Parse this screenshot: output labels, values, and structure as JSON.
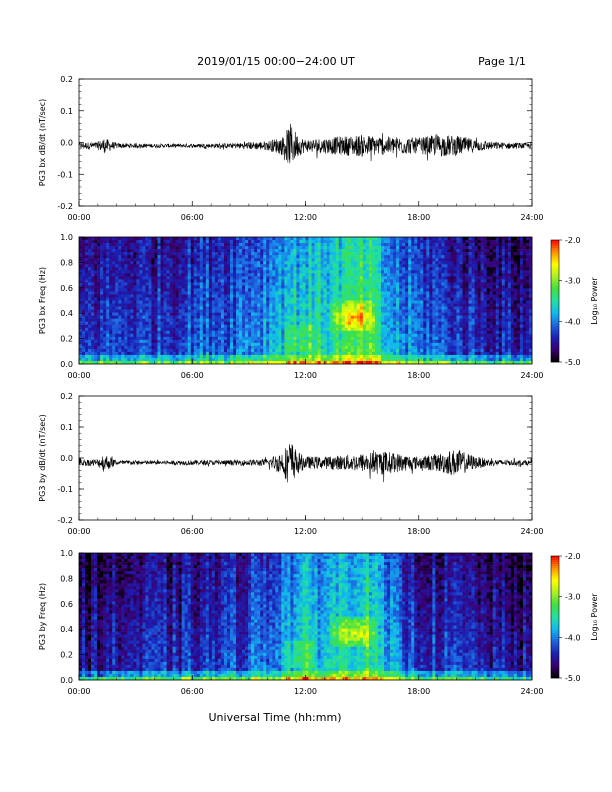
{
  "header": {
    "title": "2019/01/15  00:00−24:00 UT",
    "page": "Page 1/1"
  },
  "footer": {
    "xlabel": "Universal Time (hh:mm)"
  },
  "colors": {
    "trace": "#000000",
    "axis": "#000000",
    "background": "#ffffff",
    "colormap": [
      "#000000",
      "#3a0070",
      "#1a1fb4",
      "#1e64e0",
      "#10b8f0",
      "#22e0a0",
      "#40e040",
      "#a8f020",
      "#ffff00",
      "#ff9000",
      "#ff0000"
    ]
  },
  "chart_data": [
    {
      "type": "line",
      "ylabel": "PG3 bx dB/dt (nT/sec)",
      "ylim": [
        -0.2,
        0.2
      ],
      "yticks": [
        "0.2",
        "0.1",
        "0.0",
        "-0.1",
        "-0.2"
      ],
      "xlim_hours": [
        0,
        24
      ],
      "xticks": [
        "00:00",
        "06:00",
        "12:00",
        "18:00",
        "24:00"
      ],
      "baseline": -0.01,
      "envelope": {
        "x_hours": [
          0,
          1,
          1.3,
          2,
          4,
          6,
          8,
          10,
          10.8,
          11.2,
          11.6,
          12,
          13,
          14,
          15,
          16,
          17,
          18,
          19,
          20,
          21,
          22,
          24
        ],
        "amplitude": [
          0.01,
          0.012,
          0.025,
          0.008,
          0.006,
          0.006,
          0.008,
          0.015,
          0.03,
          0.07,
          0.035,
          0.02,
          0.025,
          0.03,
          0.035,
          0.03,
          0.028,
          0.025,
          0.035,
          0.032,
          0.02,
          0.012,
          0.008
        ]
      }
    },
    {
      "type": "heatmap",
      "ylabel": "PG3 bx Freq (Hz)",
      "ylim": [
        0.0,
        1.0
      ],
      "yticks": [
        "1.0",
        "0.8",
        "0.6",
        "0.4",
        "0.2",
        "0.0"
      ],
      "xlim_hours": [
        0,
        24
      ],
      "xticks": [
        "00:00",
        "06:00",
        "12:00",
        "18:00",
        "24:00"
      ],
      "colorbar": {
        "label": "Log₁₀ Power",
        "range": [
          -5.0,
          -2.0
        ],
        "ticks": [
          "-2.0",
          "-3.0",
          "-4.0",
          "-5.0"
        ]
      },
      "activity_profile": {
        "x_hours": [
          0,
          2,
          4,
          6,
          8,
          10,
          11,
          12,
          13,
          14,
          15,
          15.5,
          16,
          17,
          18,
          19,
          20,
          22,
          24
        ],
        "level": [
          -4.3,
          -4.2,
          -4.2,
          -4.1,
          -4.0,
          -3.75,
          -3.55,
          -3.45,
          -3.45,
          -3.3,
          -3.2,
          -3.2,
          -3.6,
          -3.9,
          -4.0,
          -4.1,
          -4.2,
          -4.35,
          -4.4
        ]
      },
      "feature": "enhanced power near 0.3-0.4 Hz around 14:00-15:30 UT"
    },
    {
      "type": "line",
      "ylabel": "PG3 by dB/dt (nT/sec)",
      "ylim": [
        -0.2,
        0.2
      ],
      "yticks": [
        "0.2",
        "0.1",
        "0.0",
        "-0.1",
        "-0.2"
      ],
      "xlim_hours": [
        0,
        24
      ],
      "xticks": [
        "00:00",
        "06:00",
        "12:00",
        "18:00",
        "24:00"
      ],
      "baseline": -0.015,
      "envelope": {
        "x_hours": [
          0,
          1,
          1.3,
          2,
          4,
          6,
          8,
          10,
          10.8,
          11.2,
          11.6,
          12,
          13,
          14,
          15,
          16,
          17,
          18,
          19,
          20,
          21,
          22,
          24
        ],
        "amplitude": [
          0.01,
          0.012,
          0.03,
          0.008,
          0.006,
          0.008,
          0.008,
          0.012,
          0.04,
          0.075,
          0.035,
          0.02,
          0.02,
          0.025,
          0.03,
          0.04,
          0.03,
          0.02,
          0.03,
          0.045,
          0.02,
          0.01,
          0.008
        ]
      }
    },
    {
      "type": "heatmap",
      "ylabel": "PG3 by Freq (Hz)",
      "ylim": [
        0.0,
        1.0
      ],
      "yticks": [
        "1.0",
        "0.8",
        "0.6",
        "0.4",
        "0.2",
        "0.0"
      ],
      "xlim_hours": [
        0,
        24
      ],
      "xticks": [
        "00:00",
        "06:00",
        "12:00",
        "18:00",
        "24:00"
      ],
      "colorbar": {
        "label": "Log₁₀ Power",
        "range": [
          -5.0,
          -2.0
        ],
        "ticks": [
          "-2.0",
          "-3.0",
          "-4.0",
          "-5.0"
        ]
      },
      "activity_profile": {
        "x_hours": [
          0,
          2,
          4,
          6,
          8,
          10,
          11,
          12,
          13,
          14,
          15,
          15.5,
          16,
          17,
          18,
          19,
          20,
          22,
          24
        ],
        "level": [
          -4.5,
          -4.4,
          -4.35,
          -4.3,
          -4.2,
          -3.95,
          -3.7,
          -3.6,
          -3.6,
          -3.45,
          -3.35,
          -3.35,
          -3.75,
          -4.05,
          -4.2,
          -4.25,
          -4.3,
          -4.45,
          -4.5
        ]
      },
      "feature": "enhanced power near 0.3-0.45 Hz around 14:00-15:30 UT"
    }
  ]
}
